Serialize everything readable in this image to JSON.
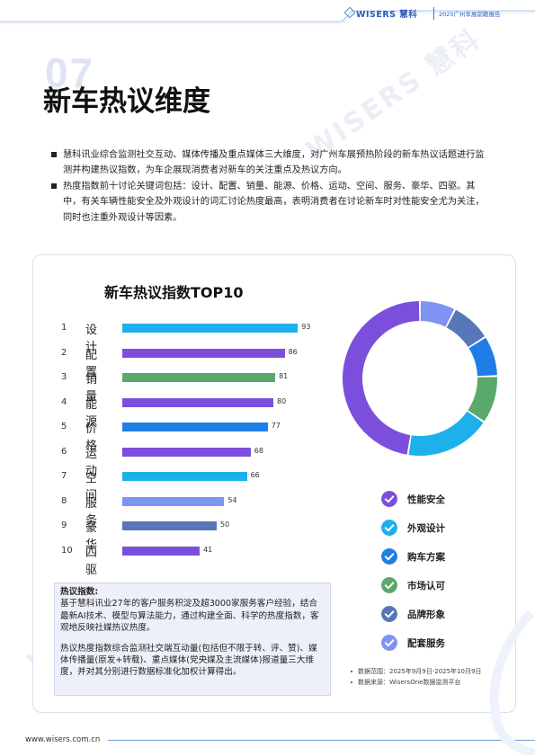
{
  "header": {
    "brand": "WISERS 慧科",
    "tag": "2025广州车展前瞻报告"
  },
  "section_number": "07",
  "page_title": "新车热议维度",
  "bullets": [
    "慧科讯业综合监测社交互动、媒体传播及重点媒体三大维度，对广州车展预热阶段的新车热议话题进行监测并构建热议指数，为车企展现消费者对新车的关注重点及热议方向。",
    "热度指数前十讨论关键词包括：设计、配置、销量、能源、价格、运动、空间、服务、豪华、四驱。其中，有关车辆性能安全及外观设计的词汇讨论热度最高，表明消费者在讨论新车时对性能安全尤为关注，同时也注重外观设计等因素。"
  ],
  "chart_data": [
    {
      "type": "bar",
      "title": "新车热议指数TOP10",
      "orientation": "horizontal",
      "ranks": [
        "1",
        "2",
        "3",
        "4",
        "5",
        "6",
        "7",
        "8",
        "9",
        "10"
      ],
      "categories": [
        "设计",
        "配置",
        "销量",
        "能源",
        "价格",
        "运动",
        "空间",
        "服务",
        "豪华",
        "四驱"
      ],
      "values": [
        93,
        86,
        81,
        80,
        77,
        68,
        66,
        54,
        50,
        41
      ],
      "colors": [
        "#1eb0ea",
        "#7b4fdc",
        "#5aa86c",
        "#7b4fdc",
        "#1f7ee6",
        "#7b4fdc",
        "#1eb0ea",
        "#7e93f2",
        "#5877b8",
        "#7b4fdc"
      ],
      "xlim": [
        0,
        100
      ]
    },
    {
      "type": "pie",
      "style": "donut",
      "segments": [
        {
          "value": 7.5,
          "color": "#7e93f2"
        },
        {
          "value": 8.5,
          "color": "#5877b8"
        },
        {
          "value": 8.5,
          "color": "#1f7ee6"
        },
        {
          "value": 10,
          "color": "#5aa86c"
        },
        {
          "value": 18,
          "color": "#1eb0ea"
        },
        {
          "value": 47.5,
          "color": "#7b4fdc"
        }
      ]
    }
  ],
  "legend": [
    {
      "label": "性能安全",
      "color": "#7b4fdc"
    },
    {
      "label": "外观设计",
      "color": "#1eb0ea"
    },
    {
      "label": "购车方案",
      "color": "#1f7ee6"
    },
    {
      "label": "市场认可",
      "color": "#5aa86c"
    },
    {
      "label": "品牌形象",
      "color": "#5877b8"
    },
    {
      "label": "配套服务",
      "color": "#7e93f2"
    }
  ],
  "note": {
    "heading": "热议指数:",
    "para1": "基于慧科讯业27年的客户服务积淀及超3000家服务客户经验，结合最新AI技术、模型与算法能力，通过构建全面、科学的热度指数，客观地反映社媒热议热度。",
    "para2": "热议热度指数综合监测社交端互动量(包括但不限于转、评、赞)、媒体传播量(原发+转载)、重点媒体(党央媒及主流媒体)报道量三大维度，并对其分别进行数据标准化加权计算得出。"
  },
  "sources": [
    "数据范围：2025年9月9日-2025年10月9日",
    "数据来源：WisersOne数据监测平台"
  ],
  "footer": {
    "url": "www.wisers.com.cn"
  },
  "watermark": "WISERS 慧科"
}
